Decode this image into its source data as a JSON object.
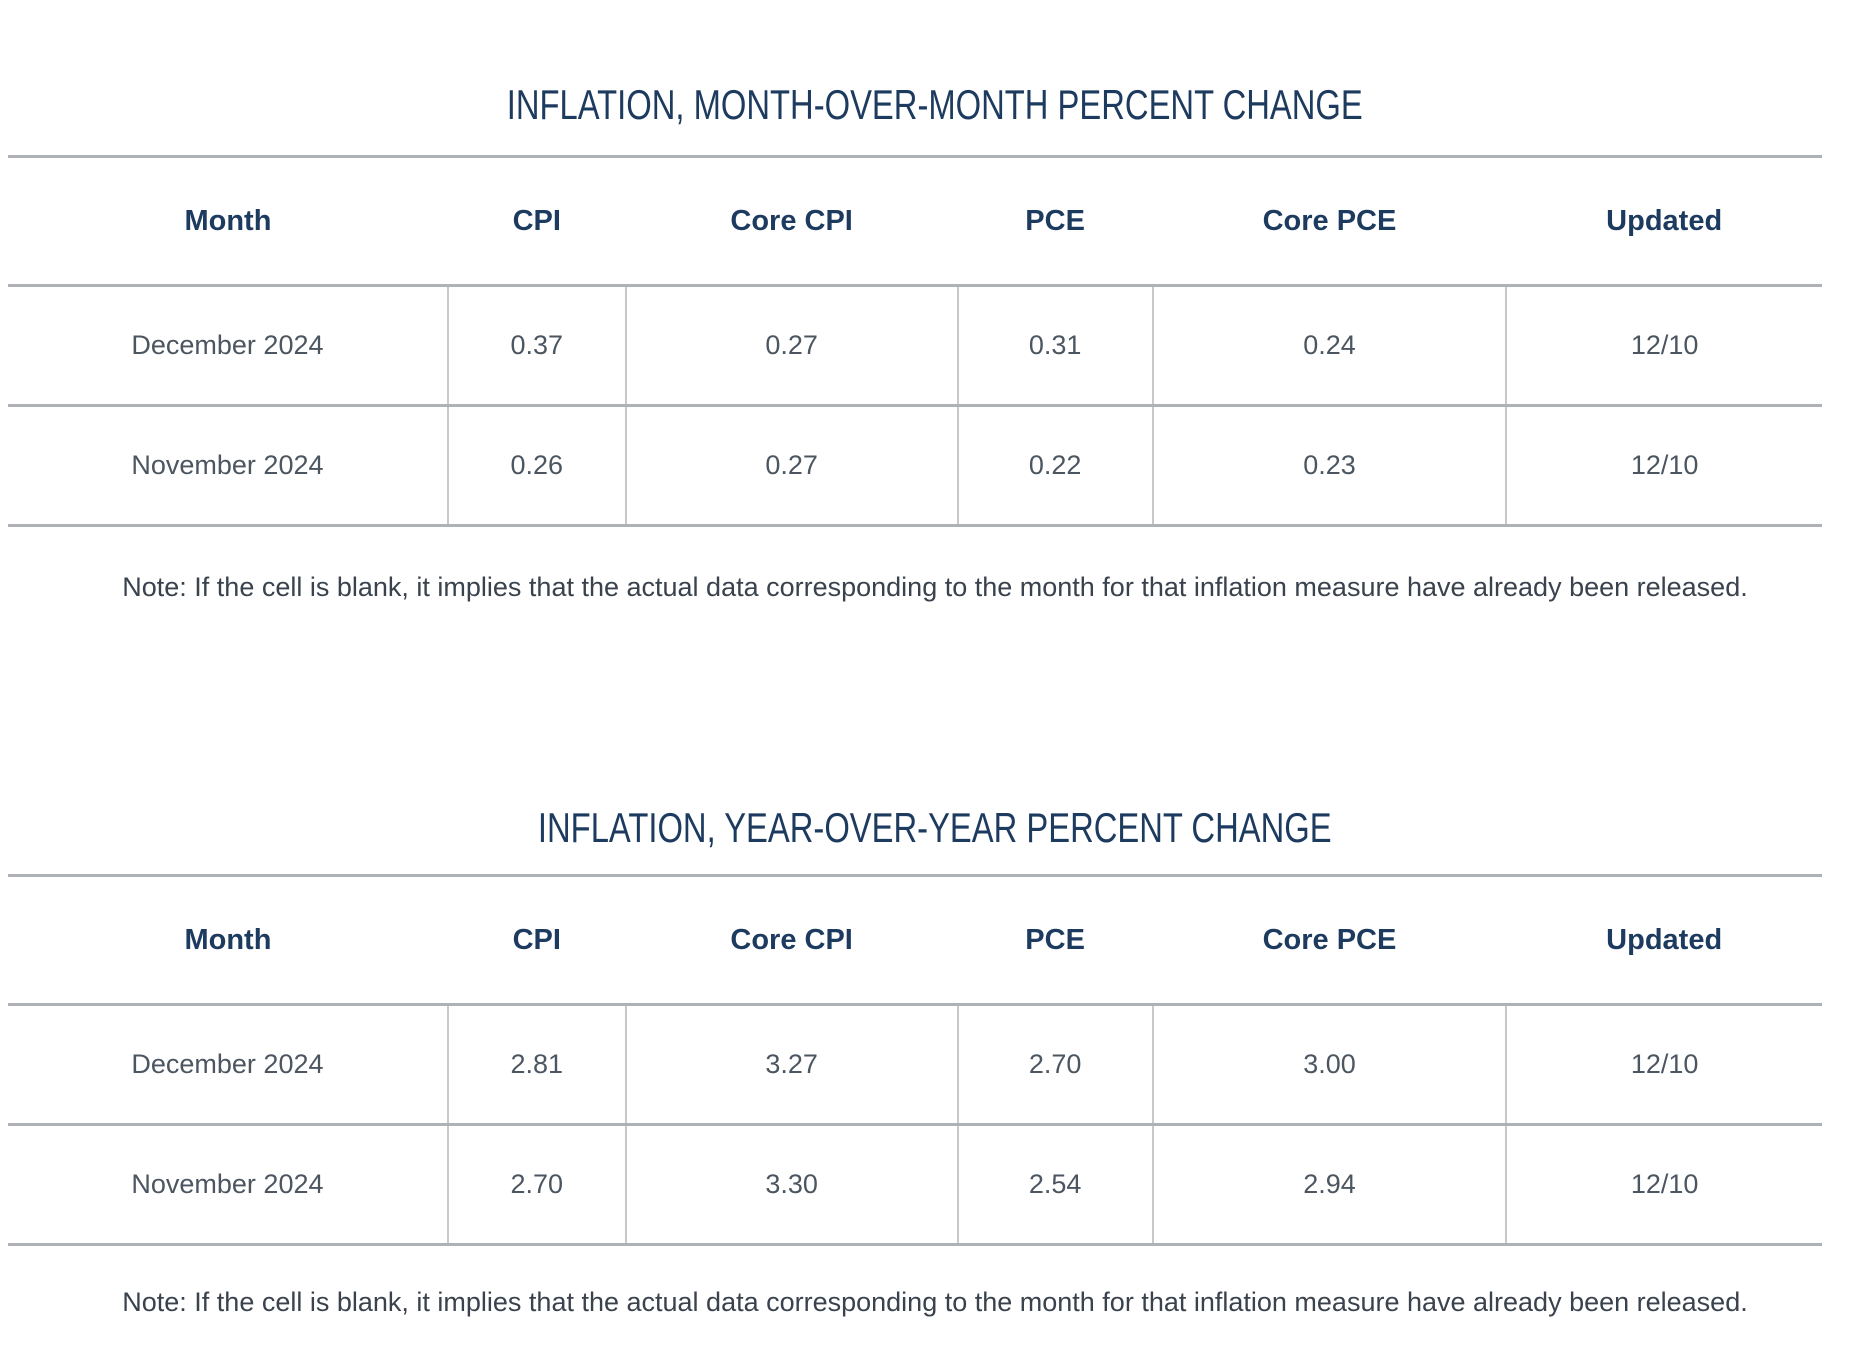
{
  "colors": {
    "title_navy": "#1d3a5f",
    "header_navy": "#1d3a5f",
    "body_text": "#4c5661",
    "note_text": "#39424d",
    "horizontal_rule": "#aeb2b6",
    "column_divider": "#c6c8ca",
    "background": "#ffffff"
  },
  "chart_data": [
    {
      "type": "table",
      "title": "INFLATION, MONTH-OVER-MONTH PERCENT CHANGE",
      "columns": [
        "Month",
        "CPI",
        "Core CPI",
        "PCE",
        "Core PCE",
        "Updated"
      ],
      "rows": [
        [
          "December 2024",
          "0.37",
          "0.27",
          "0.31",
          "0.24",
          "12/10"
        ],
        [
          "November 2024",
          "0.26",
          "0.27",
          "0.22",
          "0.23",
          "12/10"
        ]
      ],
      "note": "Note: If the cell is blank, it implies that the actual data corresponding to the month for that inflation measure have already been released."
    },
    {
      "type": "table",
      "title": "INFLATION, YEAR-OVER-YEAR PERCENT CHANGE",
      "columns": [
        "Month",
        "CPI",
        "Core CPI",
        "PCE",
        "Core PCE",
        "Updated"
      ],
      "rows": [
        [
          "December 2024",
          "2.81",
          "3.27",
          "2.70",
          "3.00",
          "12/10"
        ],
        [
          "November 2024",
          "2.70",
          "3.30",
          "2.54",
          "2.94",
          "12/10"
        ]
      ],
      "note": "Note: If the cell is blank, it implies that the actual data corresponding to the month for that inflation measure have already been released."
    }
  ]
}
